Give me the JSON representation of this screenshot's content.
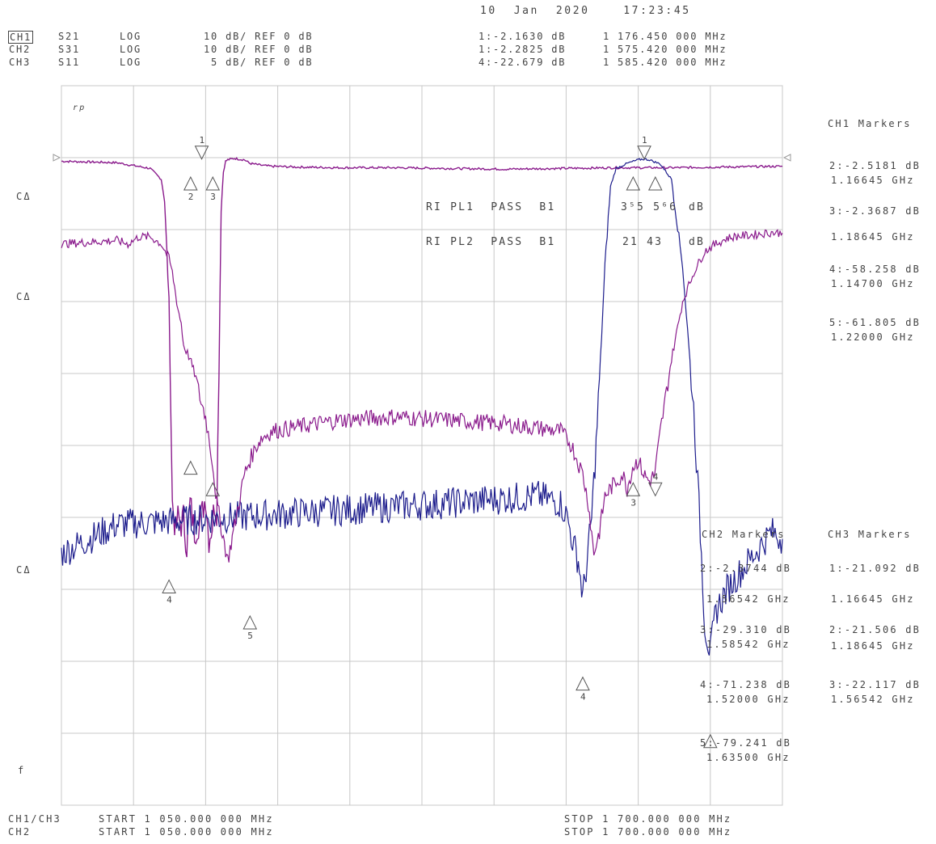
{
  "timestamp": "10  Jan  2020    17:23:45",
  "channels": [
    {
      "name": "CH1",
      "param": "S21",
      "format": "LOG",
      "scale": "10 dB/ REF 0 dB"
    },
    {
      "name": "CH2",
      "param": "S31",
      "format": "LOG",
      "scale": "10 dB/ REF 0 dB"
    },
    {
      "name": "CH3",
      "param": "S11",
      "format": "LOG",
      "scale": " 5 dB/ REF 0 dB"
    }
  ],
  "active_markers": [
    {
      "label": "1:-2.1630 dB",
      "freq": "1 176.450 000 MHz"
    },
    {
      "label": "1:-2.2825 dB",
      "freq": "1 575.420 000 MHz"
    },
    {
      "label": "4:-22.679 dB",
      "freq": "1 585.420 000 MHz"
    }
  ],
  "left_labels": {
    "ref_marker": "rp",
    "cal1": "CΔ",
    "cal2": "CΔ",
    "cal3": "CΔ",
    "bottom": "f"
  },
  "limit_tests": [
    {
      "text": "RI PL1  PASS  B1",
      "value": "3⁵5 5⁶6",
      "unit": "dB"
    },
    {
      "text": "RI PL2  PASS  B1",
      "value": "21 43",
      "unit": "dB"
    }
  ],
  "ch1_markers": {
    "title": "CH1 Markers",
    "items": [
      {
        "value": "2:-2.5181 dB",
        "freq": "1.16645 GHz"
      },
      {
        "value": "3:-2.3687 dB",
        "freq": "1.18645 GHz"
      },
      {
        "value": "4:-58.258 dB",
        "freq": "1.14700 GHz"
      },
      {
        "value": "5:-61.805 dB",
        "freq": "1.22000 GHz"
      }
    ]
  },
  "ch2_markers": {
    "title": "CH2 Markers",
    "items": [
      {
        "value": "2:-2.3744 dB",
        "freq": "1.56542 GHz"
      },
      {
        "value": "3:-29.310 dB",
        "freq": "1.58542 GHz"
      },
      {
        "value": "4:-71.238 dB",
        "freq": "1.52000 GHz"
      },
      {
        "value": "5:-79.241 dB",
        "freq": "1.63500 GHz"
      }
    ]
  },
  "ch3_markers": {
    "title": "CH3 Markers",
    "items": [
      {
        "value": "1:-21.092 dB",
        "freq": "1.16645 GHz"
      },
      {
        "value": "2:-21.506 dB",
        "freq": "1.18645 GHz"
      },
      {
        "value": "3:-22.117 dB",
        "freq": "1.56542 GHz"
      }
    ]
  },
  "footer": {
    "row1_ch": "CH1/CH3",
    "row1_start": "START 1 050.000 000 MHz",
    "row1_stop": "STOP 1 700.000 000 MHz",
    "row2_ch": "CH2",
    "row2_start": "START 1 050.000 000 MHz",
    "row2_stop": "STOP 1 700.000 000 MHz"
  },
  "colors": {
    "ch1": "#8a1a8c",
    "ch2": "#1c1c8c",
    "ch3": "#8a1a8c",
    "grid": "#c8c8c8",
    "marker": "#555555"
  },
  "chart_data": {
    "type": "line",
    "xlim": [
      1050,
      1700
    ],
    "ylim": [
      -100,
      0
    ],
    "grid": true,
    "x_divisions": 10,
    "y_divisions": 10,
    "series": [
      {
        "name": "S21",
        "x": [
          1050,
          1100,
          1130,
          1140,
          1143,
          1147,
          1150,
          1153,
          1155,
          1158,
          1160,
          1163,
          1166,
          1170,
          1176,
          1180,
          1183,
          1186,
          1188,
          1190,
          1192,
          1194,
          1196,
          1198,
          1200,
          1203,
          1206,
          1210,
          1215,
          1218,
          1220,
          1224,
          1228,
          1232,
          1240,
          1260,
          1300,
          1350,
          1400,
          1450,
          1500,
          1550,
          1570,
          1600,
          1650,
          1700
        ],
        "y": [
          -10.5,
          -10.7,
          -11.5,
          -13,
          -16,
          -30,
          -58,
          -62,
          -60,
          -61,
          -60,
          -64,
          -58,
          -62,
          -60,
          -57,
          -63,
          -61,
          -58,
          -59,
          -40,
          -17,
          -12,
          -10.5,
          -10.3,
          -10.2,
          -10.1,
          -10.2,
          -10.3,
          -10.6,
          -10.8,
          -10.9,
          -11,
          -11.1,
          -11.2,
          -11.3,
          -11.4,
          -11.4,
          -11.5,
          -11.6,
          -11.5,
          -11.4,
          -11.4,
          -11.4,
          -11.3,
          -11.2
        ]
      },
      {
        "name": "S31",
        "x": [
          1050,
          1100,
          1200,
          1300,
          1400,
          1480,
          1500,
          1506,
          1512,
          1516,
          1520,
          1524,
          1528,
          1532,
          1536,
          1540,
          1545,
          1550,
          1560,
          1570,
          1575,
          1580,
          1590,
          1600,
          1610,
          1620,
          1626,
          1630,
          1635,
          1640,
          1650,
          1660,
          1670,
          1680,
          1690,
          1700
        ],
        "y": [
          -65,
          -61,
          -60,
          -59,
          -58,
          -57,
          -58,
          -60,
          -64,
          -66,
          -71,
          -66,
          -60,
          -50,
          -38,
          -25,
          -14,
          -11.5,
          -10.8,
          -10.3,
          -10.2,
          -10.3,
          -10.9,
          -13,
          -25,
          -45,
          -62,
          -75,
          -79,
          -73,
          -70,
          -68,
          -66,
          -64,
          -62,
          -63
        ]
      },
      {
        "name": "S11",
        "x": [
          1050,
          1100,
          1110,
          1120,
          1130,
          1140,
          1147,
          1150,
          1153,
          1155,
          1158,
          1160,
          1166,
          1170,
          1176,
          1180,
          1186,
          1190,
          1195,
          1200,
          1205,
          1210,
          1215,
          1220,
          1226,
          1230,
          1240,
          1260,
          1300,
          1350,
          1400,
          1450,
          1500,
          1510,
          1520,
          1525,
          1530,
          1535,
          1540,
          1545,
          1550,
          1556,
          1560,
          1565,
          1570,
          1575,
          1580,
          1585,
          1590,
          1600,
          1610,
          1620,
          1630,
          1640,
          1650,
          1660,
          1670,
          1680,
          1690,
          1700
        ],
        "y": [
          -22,
          -21.5,
          -22,
          -21,
          -21,
          -22,
          -24,
          -26,
          -29,
          -31,
          -33,
          -36,
          -38,
          -40,
          -44,
          -46,
          -52,
          -58,
          -62,
          -66,
          -62,
          -58,
          -54,
          -52,
          -50,
          -49,
          -48,
          -47.5,
          -46.5,
          -46,
          -46.5,
          -47,
          -48,
          -50,
          -54,
          -58,
          -65,
          -62,
          -57,
          -56,
          -55,
          -54,
          -56,
          -53,
          -52,
          -54,
          -55,
          -54,
          -48,
          -38,
          -30,
          -26,
          -23,
          -22,
          -21.2,
          -20.9,
          -20.8,
          -20.6,
          -20.4,
          -20.5
        ]
      }
    ]
  }
}
